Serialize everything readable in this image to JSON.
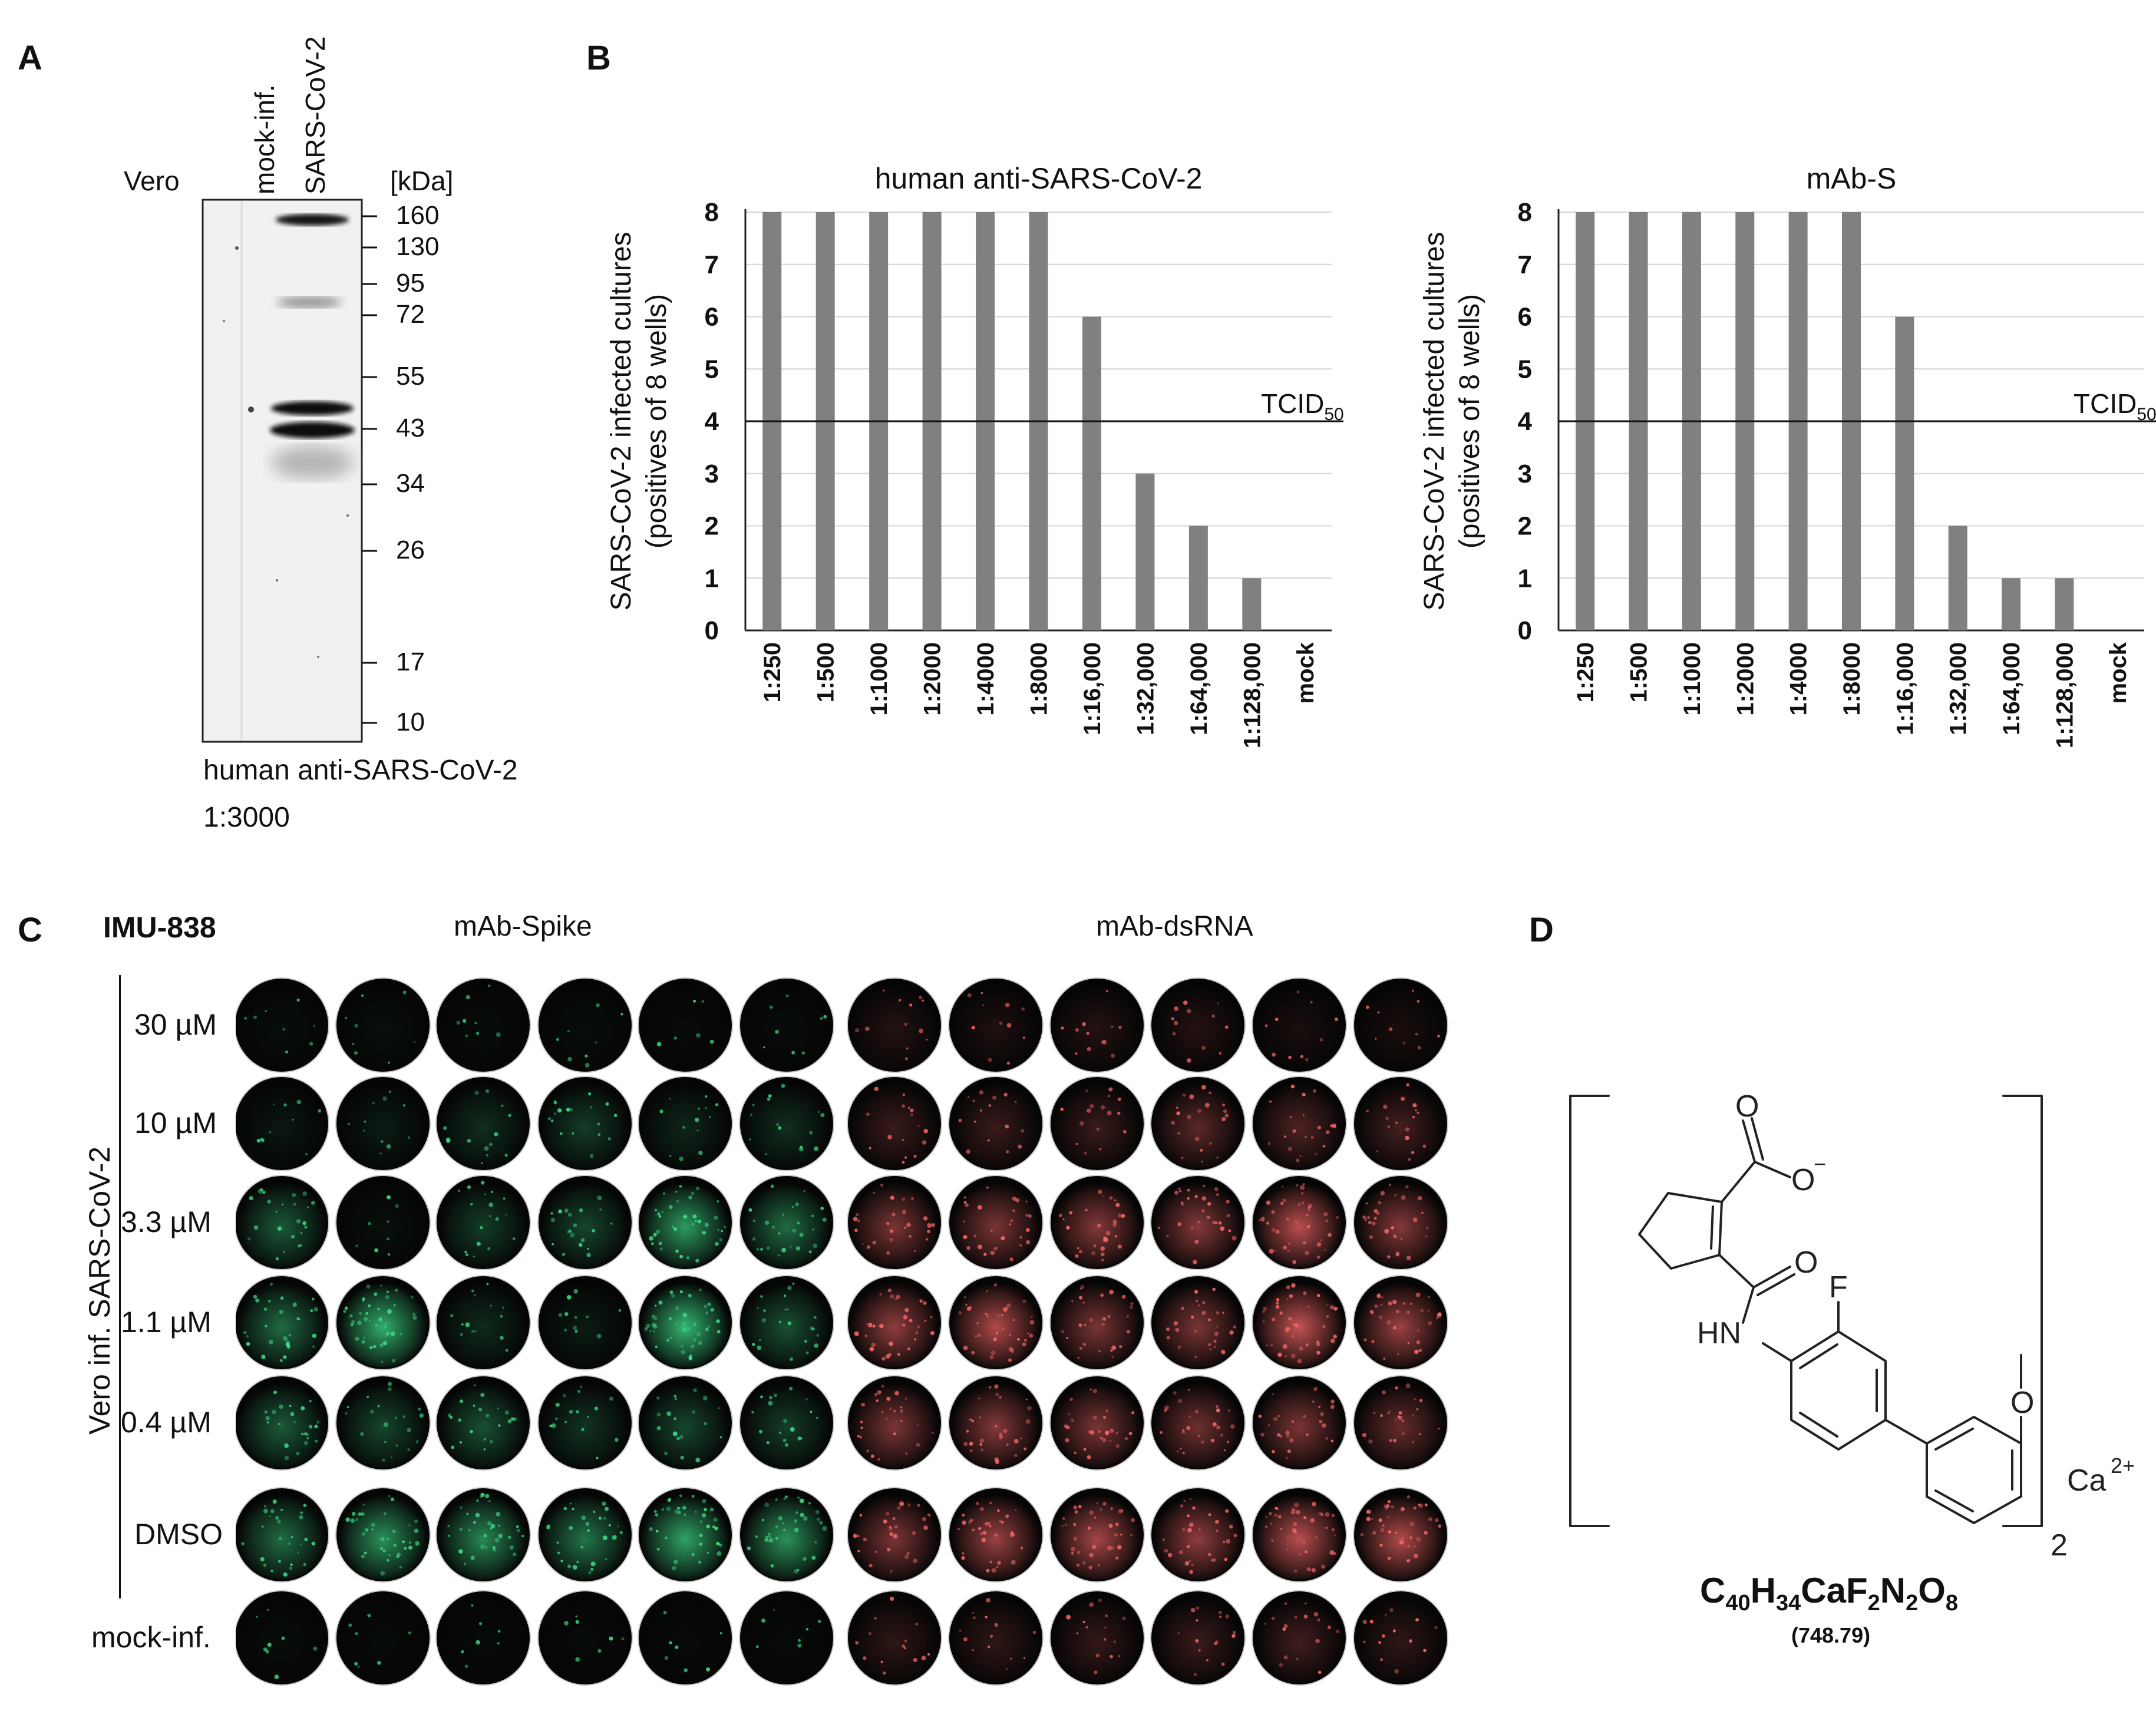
{
  "panels": {
    "a": "A",
    "b": "B",
    "c": "C",
    "d": "D"
  },
  "western_blot": {
    "cell_label": "Vero",
    "lanes": [
      "mock-inf.",
      "SARS-CoV-2"
    ],
    "unit_label": "[kDa]",
    "markers_kda": [
      "160",
      "130",
      "95",
      "72",
      "55",
      "43",
      "34",
      "26",
      "17",
      "10"
    ],
    "caption_line1": "human anti-SARS-CoV-2",
    "caption_line2": "1:3000"
  },
  "chart_data": [
    {
      "type": "bar",
      "title": "human anti-SARS-CoV-2",
      "ylabel_line1": "SARS-CoV-2 infected cultures",
      "ylabel_line2": "(positives of 8 wells)",
      "categories": [
        "1:250",
        "1:500",
        "1:1000",
        "1:2000",
        "1:4000",
        "1:8000",
        "1:16,000",
        "1:32,000",
        "1:64,000",
        "1:128,000",
        "mock"
      ],
      "values": [
        8,
        8,
        8,
        8,
        8,
        8,
        6,
        3,
        2,
        1,
        0
      ],
      "ylim": [
        0,
        8
      ],
      "yticks": [
        "0",
        "1",
        "2",
        "3",
        "4",
        "5",
        "6",
        "7",
        "8"
      ],
      "reference_line": {
        "value": 4,
        "label": "TCID",
        "label_sub": "50"
      },
      "grid": true,
      "bar_color": "#808080"
    },
    {
      "type": "bar",
      "title": "mAb-S",
      "ylabel_line1": "SARS-CoV-2 infected cultures",
      "ylabel_line2": "(positives of 8 wells)",
      "categories": [
        "1:250",
        "1:500",
        "1:1000",
        "1:2000",
        "1:4000",
        "1:8000",
        "1:16,000",
        "1:32,000",
        "1:64,000",
        "1:128,000",
        "mock"
      ],
      "values": [
        8,
        8,
        8,
        8,
        8,
        8,
        6,
        2,
        1,
        1,
        0
      ],
      "ylim": [
        0,
        8
      ],
      "yticks": [
        "0",
        "1",
        "2",
        "3",
        "4",
        "5",
        "6",
        "7",
        "8"
      ],
      "reference_line": {
        "value": 4,
        "label": "TCID",
        "label_sub": "50"
      },
      "grid": true,
      "bar_color": "#808080"
    }
  ],
  "plate": {
    "compound": "IMU-838",
    "group_spike": "mAb-Spike",
    "group_dsrna": "mAb-dsRNA",
    "side_label": "Vero inf. SARS-CoV-2",
    "rows": [
      "30 µM",
      "10 µM",
      "3.3 µM",
      "1.1 µM",
      "0.4 µM",
      "DMSO",
      "mock-inf."
    ],
    "spike_intensity": [
      [
        0.05,
        0.06,
        0.04,
        0.05,
        0.03,
        0.04
      ],
      [
        0.1,
        0.12,
        0.22,
        0.3,
        0.18,
        0.22
      ],
      [
        0.45,
        0.06,
        0.3,
        0.35,
        0.8,
        0.55
      ],
      [
        0.55,
        0.9,
        0.2,
        0.12,
        0.95,
        0.4
      ],
      [
        0.45,
        0.35,
        0.4,
        0.25,
        0.35,
        0.3
      ],
      [
        0.55,
        0.75,
        0.7,
        0.6,
        0.85,
        0.75
      ],
      [
        0.04,
        0.03,
        0.03,
        0.03,
        0.03,
        0.03
      ]
    ],
    "dsrna_intensity": [
      [
        0.15,
        0.12,
        0.15,
        0.15,
        0.1,
        0.1
      ],
      [
        0.25,
        0.25,
        0.25,
        0.4,
        0.35,
        0.3
      ],
      [
        0.55,
        0.55,
        0.6,
        0.6,
        0.85,
        0.6
      ],
      [
        0.65,
        0.8,
        0.55,
        0.55,
        0.9,
        0.7
      ],
      [
        0.55,
        0.6,
        0.55,
        0.5,
        0.55,
        0.45
      ],
      [
        0.55,
        0.7,
        0.75,
        0.65,
        0.85,
        0.8
      ],
      [
        0.2,
        0.2,
        0.22,
        0.25,
        0.28,
        0.2
      ]
    ],
    "spike_color": "#3fe08a",
    "dsrna_color": "#ff6a6a"
  },
  "molecule": {
    "atom_O": "O",
    "atom_F": "F",
    "atom_HN": "HN",
    "charge_minus": "−",
    "bracket_sub": "2",
    "cation": "Ca",
    "cation_charge": "2+",
    "formula_parts": [
      "C",
      "40",
      "H",
      "34",
      "CaF",
      "2",
      "N",
      "2",
      "O",
      "8"
    ],
    "mass": "(748.79)"
  }
}
